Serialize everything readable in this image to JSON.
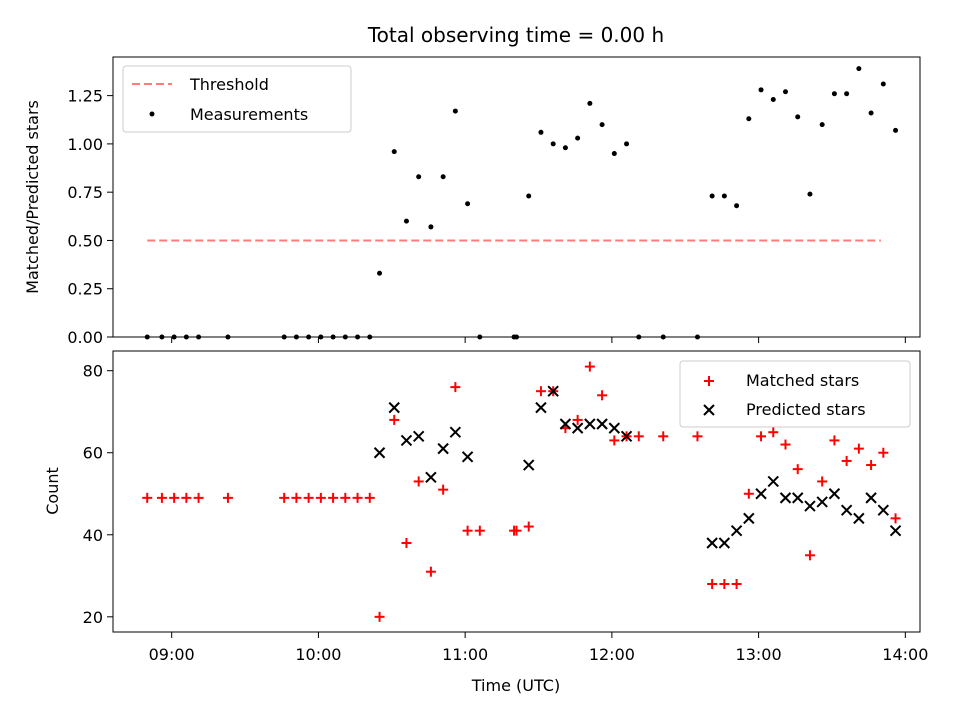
{
  "chart_data": [
    {
      "type": "scatter",
      "title": "Total observing time = 0.00 h",
      "ylabel": "Matched/Predicted stars",
      "xlabel": "",
      "xlim": [
        "08:36",
        "14:06"
      ],
      "ylim": [
        0,
        1.45
      ],
      "x_ticks": [
        "09:00",
        "10:00",
        "11:00",
        "12:00",
        "13:00",
        "14:00"
      ],
      "x_ticklabels_visible": false,
      "y_ticks": [
        "0.00",
        "0.25",
        "0.50",
        "0.75",
        "1.00",
        "1.25"
      ],
      "legend_position": "top-left",
      "threshold": {
        "name": "Threshold",
        "value": 0.5,
        "x_start": "08:50",
        "x_end": "13:50",
        "color": "#ff7b7b",
        "style": "dashed"
      },
      "series": [
        {
          "name": "Measurements",
          "marker": "dot",
          "color": "#000000",
          "points": [
            [
              "08:50",
              0.0
            ],
            [
              "08:56",
              0.0
            ],
            [
              "09:01",
              0.0
            ],
            [
              "09:06",
              0.0
            ],
            [
              "09:11",
              0.0
            ],
            [
              "09:23",
              0.0
            ],
            [
              "09:46",
              0.0
            ],
            [
              "09:51",
              0.0
            ],
            [
              "09:56",
              0.0
            ],
            [
              "10:01",
              0.0
            ],
            [
              "10:06",
              0.0
            ],
            [
              "10:11",
              0.0
            ],
            [
              "10:16",
              0.0
            ],
            [
              "10:21",
              0.0
            ],
            [
              "10:25",
              0.33
            ],
            [
              "10:31",
              0.96
            ],
            [
              "10:36",
              0.6
            ],
            [
              "10:41",
              0.83
            ],
            [
              "10:46",
              0.57
            ],
            [
              "10:51",
              0.83
            ],
            [
              "10:56",
              1.17
            ],
            [
              "11:01",
              0.69
            ],
            [
              "11:06",
              0.0
            ],
            [
              "11:20",
              0.0
            ],
            [
              "11:21",
              0.0
            ],
            [
              "11:26",
              0.73
            ],
            [
              "11:31",
              1.06
            ],
            [
              "11:36",
              1.0
            ],
            [
              "11:41",
              0.98
            ],
            [
              "11:46",
              1.03
            ],
            [
              "11:51",
              1.21
            ],
            [
              "11:56",
              1.1
            ],
            [
              "12:01",
              0.95
            ],
            [
              "12:06",
              1.0
            ],
            [
              "12:11",
              0.0
            ],
            [
              "12:21",
              0.0
            ],
            [
              "12:35",
              0.0
            ],
            [
              "12:41",
              0.73
            ],
            [
              "12:46",
              0.73
            ],
            [
              "12:51",
              0.68
            ],
            [
              "12:56",
              1.13
            ],
            [
              "13:01",
              1.28
            ],
            [
              "13:06",
              1.23
            ],
            [
              "13:11",
              1.27
            ],
            [
              "13:16",
              1.14
            ],
            [
              "13:21",
              0.74
            ],
            [
              "13:26",
              1.1
            ],
            [
              "13:31",
              1.26
            ],
            [
              "13:36",
              1.26
            ],
            [
              "13:41",
              1.39
            ],
            [
              "13:46",
              1.16
            ],
            [
              "13:51",
              1.31
            ],
            [
              "13:56",
              1.07
            ]
          ]
        }
      ]
    },
    {
      "type": "scatter",
      "title": "",
      "ylabel": "Count",
      "xlabel": "Time (UTC)",
      "xlim": [
        "08:36",
        "14:06"
      ],
      "ylim": [
        16.3,
        84.8
      ],
      "x_ticks": [
        "09:00",
        "10:00",
        "11:00",
        "12:00",
        "13:00",
        "14:00"
      ],
      "x_ticklabels_visible": true,
      "y_ticks": [
        "20",
        "40",
        "60",
        "80"
      ],
      "legend_position": "top-right",
      "series": [
        {
          "name": "Matched stars",
          "marker": "plus",
          "color": "#ff0000",
          "points": [
            [
              "08:50",
              49
            ],
            [
              "08:56",
              49
            ],
            [
              "09:01",
              49
            ],
            [
              "09:06",
              49
            ],
            [
              "09:11",
              49
            ],
            [
              "09:23",
              49
            ],
            [
              "09:46",
              49
            ],
            [
              "09:51",
              49
            ],
            [
              "09:56",
              49
            ],
            [
              "10:01",
              49
            ],
            [
              "10:06",
              49
            ],
            [
              "10:11",
              49
            ],
            [
              "10:16",
              49
            ],
            [
              "10:21",
              49
            ],
            [
              "10:25",
              20
            ],
            [
              "10:31",
              68
            ],
            [
              "10:36",
              38
            ],
            [
              "10:41",
              53
            ],
            [
              "10:46",
              31
            ],
            [
              "10:51",
              51
            ],
            [
              "10:56",
              76
            ],
            [
              "11:01",
              41
            ],
            [
              "11:06",
              41
            ],
            [
              "11:20",
              41
            ],
            [
              "11:21",
              41
            ],
            [
              "11:26",
              42
            ],
            [
              "11:31",
              75
            ],
            [
              "11:36",
              75
            ],
            [
              "11:41",
              66
            ],
            [
              "11:46",
              68
            ],
            [
              "11:51",
              81
            ],
            [
              "11:56",
              74
            ],
            [
              "12:01",
              63
            ],
            [
              "12:06",
              64
            ],
            [
              "12:11",
              64
            ],
            [
              "12:21",
              64
            ],
            [
              "12:35",
              64
            ],
            [
              "12:41",
              28
            ],
            [
              "12:46",
              28
            ],
            [
              "12:51",
              28
            ],
            [
              "12:56",
              50
            ],
            [
              "13:01",
              64
            ],
            [
              "13:06",
              65
            ],
            [
              "13:11",
              62
            ],
            [
              "13:16",
              56
            ],
            [
              "13:21",
              35
            ],
            [
              "13:26",
              53
            ],
            [
              "13:31",
              63
            ],
            [
              "13:36",
              58
            ],
            [
              "13:41",
              61
            ],
            [
              "13:46",
              57
            ],
            [
              "13:51",
              60
            ],
            [
              "13:56",
              44
            ]
          ]
        },
        {
          "name": "Predicted stars",
          "marker": "x",
          "color": "#000000",
          "points": [
            [
              "10:25",
              60
            ],
            [
              "10:31",
              71
            ],
            [
              "10:36",
              63
            ],
            [
              "10:41",
              64
            ],
            [
              "10:46",
              54
            ],
            [
              "10:51",
              61
            ],
            [
              "10:56",
              65
            ],
            [
              "11:01",
              59
            ],
            [
              "11:26",
              57
            ],
            [
              "11:31",
              71
            ],
            [
              "11:36",
              75
            ],
            [
              "11:41",
              67
            ],
            [
              "11:46",
              66
            ],
            [
              "11:51",
              67
            ],
            [
              "11:56",
              67
            ],
            [
              "12:01",
              66
            ],
            [
              "12:06",
              64
            ],
            [
              "12:41",
              38
            ],
            [
              "12:46",
              38
            ],
            [
              "12:51",
              41
            ],
            [
              "12:56",
              44
            ],
            [
              "13:01",
              50
            ],
            [
              "13:06",
              53
            ],
            [
              "13:11",
              49
            ],
            [
              "13:16",
              49
            ],
            [
              "13:21",
              47
            ],
            [
              "13:26",
              48
            ],
            [
              "13:31",
              50
            ],
            [
              "13:36",
              46
            ],
            [
              "13:41",
              44
            ],
            [
              "13:46",
              49
            ],
            [
              "13:51",
              46
            ],
            [
              "13:56",
              41
            ]
          ]
        }
      ]
    }
  ]
}
